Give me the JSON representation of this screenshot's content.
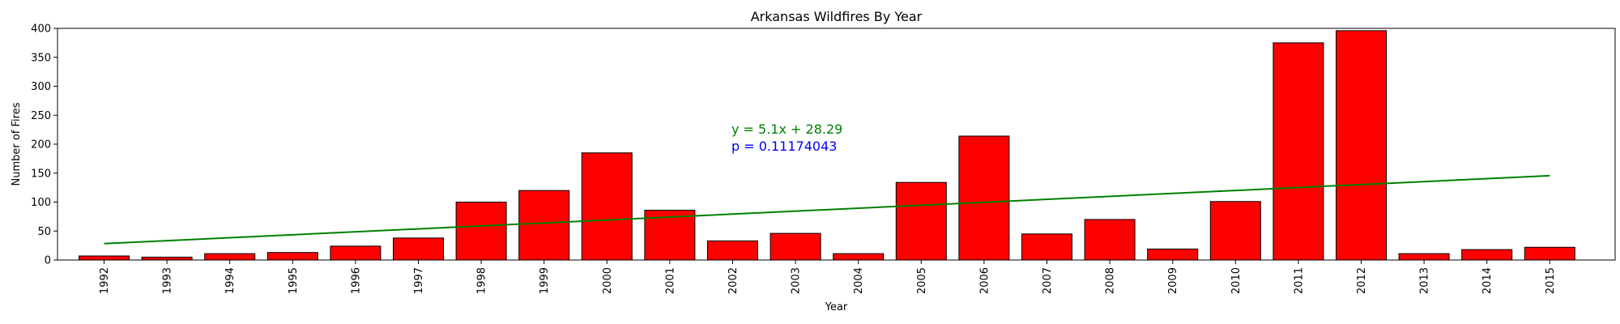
{
  "chart_data": {
    "type": "bar",
    "title": "Arkansas Wildfires By Year",
    "xlabel": "Year",
    "ylabel": "Number of Fires",
    "ylim": [
      0,
      400
    ],
    "yticks": [
      0,
      50,
      100,
      150,
      200,
      250,
      300,
      350,
      400
    ],
    "categories": [
      "1992",
      "1993",
      "1994",
      "1995",
      "1996",
      "1997",
      "1998",
      "1999",
      "2000",
      "2001",
      "2002",
      "2003",
      "2004",
      "2005",
      "2006",
      "2007",
      "2008",
      "2009",
      "2010",
      "2011",
      "2012",
      "2013",
      "2014",
      "2015"
    ],
    "values": [
      7,
      5,
      11,
      13,
      24,
      38,
      100,
      120,
      185,
      86,
      33,
      46,
      11,
      134,
      214,
      45,
      70,
      19,
      101,
      375,
      396,
      11,
      18,
      22
    ],
    "bar_color": "#ff0000",
    "bar_edge_color": "#000000",
    "trend_line": {
      "slope": 5.1,
      "intercept": 28.29,
      "color": "#008000"
    },
    "annotations": [
      {
        "text": "y = 5.1x + 28.29",
        "color": "#008000"
      },
      {
        "text": "p = 0.11174043",
        "color": "#0000ff"
      }
    ],
    "grid": false
  }
}
